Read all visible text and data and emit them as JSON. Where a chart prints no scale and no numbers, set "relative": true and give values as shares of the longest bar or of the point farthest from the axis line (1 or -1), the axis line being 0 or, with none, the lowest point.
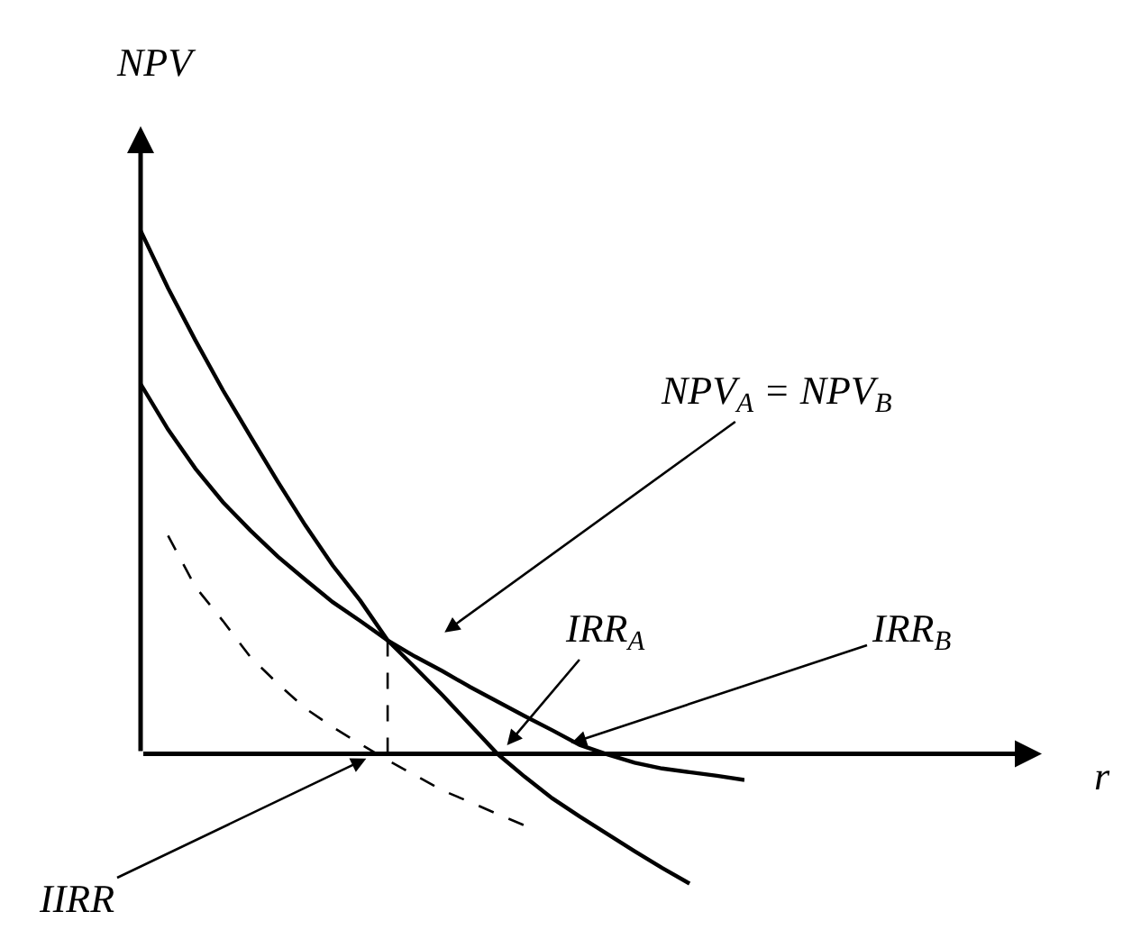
{
  "chart_data": {
    "type": "line",
    "relative": true,
    "ylabel": "NPV",
    "line_style": "solid",
    "marker": "none",
    "categories": [
      null,
      null,
      null,
      null,
      null,
      null,
      null,
      null,
      null,
      null,
      null,
      null,
      null,
      null,
      null,
      null,
      null,
      null,
      null,
      null,
      null,
      null,
      null
    ],
    "series": [
      {
        "color": "#000000",
        "values": [
          1,
          0.89,
          0.79,
          0.695,
          0.607,
          0.52,
          0.437,
          0.36,
          0.293,
          0.217,
          0.165,
          0.112,
          0.056,
          0,
          -0.044,
          -0.085,
          -0.12,
          -0.153,
          -0.186,
          -0.218,
          -0.248,
          null,
          null
        ]
      },
      {
        "color": "#000000",
        "values": [
          0.707,
          0.62,
          0.545,
          0.481,
          0.427,
          0.377,
          0.333,
          0.29,
          0.254,
          0.217,
          0.186,
          0.158,
          0.128,
          0.1,
          0.072,
          0.045,
          0.017,
          -0.001,
          -0.017,
          -0.028,
          -0.035,
          -0.042,
          -0.05
        ]
      },
      {
        "color": "#000000",
        "line_style": "dashed",
        "values": [
          null,
          0.417,
          0.319,
          0.254,
          0.185,
          0.134,
          0.087,
          0.051,
          0.019,
          -0.012,
          -0.041,
          -0.07,
          -0.092,
          -0.115,
          -0.137,
          null,
          null,
          null,
          null,
          null,
          null,
          null,
          null
        ]
      }
    ],
    "annotations": [
      "NPV$_{A}$ = NPV$_{B}$",
      "IRR$_{A}$",
      "IRR$_{B}$",
      "IIRR",
      "r"
    ]
  }
}
